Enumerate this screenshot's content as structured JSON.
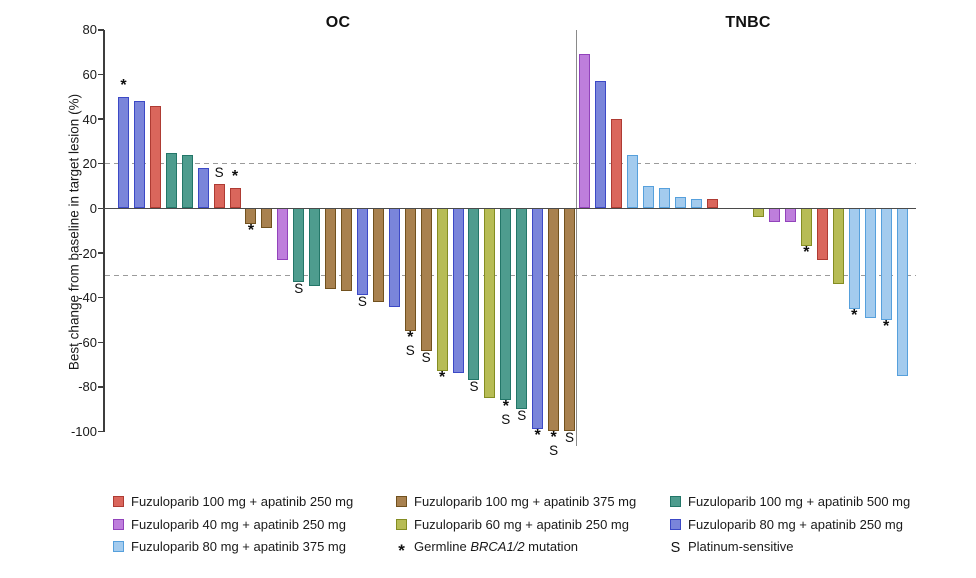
{
  "chart_data": {
    "type": "bar",
    "variant": "waterfall",
    "title": "",
    "ylabel": "Best change from baseline in target lesion (%)",
    "ylim": [
      -100,
      80
    ],
    "yticks": [
      80,
      60,
      40,
      20,
      0,
      -20,
      -40,
      -60,
      -80,
      -100
    ],
    "reference_lines": [
      20,
      -30
    ],
    "grid": "off",
    "marker_meanings": {
      "*": "Germline BRCA1/2 mutation",
      "S": "Platinum-sensitive"
    },
    "groups": {
      "f100a250": {
        "label": "Fuzuloparib 100 mg + apatinib 250 mg",
        "fill": "#DA665C",
        "stroke": "#AE3B33"
      },
      "f100a375": {
        "label": "Fuzuloparib 100 mg + apatinib 375 mg",
        "fill": "#A8814F",
        "stroke": "#71511E"
      },
      "f100a500": {
        "label": "Fuzuloparib 100 mg + apatinib 500 mg",
        "fill": "#4E9C8E",
        "stroke": "#237668"
      },
      "f40a250": {
        "label": "Fuzuloparib 40 mg + apatinib 250 mg",
        "fill": "#BE7EDC",
        "stroke": "#9243BB"
      },
      "f60a250": {
        "label": "Fuzuloparib 60 mg + apatinib 250 mg",
        "fill": "#B7BC55",
        "stroke": "#848D22"
      },
      "f80a250": {
        "label": "Fuzuloparib 80 mg + apatinib 250 mg",
        "fill": "#7A85DA",
        "stroke": "#3C49C6"
      },
      "f80a375": {
        "label": "Fuzuloparib 80 mg + apatinib 375 mg",
        "fill": "#A3CBEE",
        "stroke": "#56A0DC"
      }
    },
    "panels": [
      {
        "label": "OC",
        "bars": [
          {
            "value": 50,
            "group": "f80a250",
            "markers": [
              "*"
            ]
          },
          {
            "value": 48,
            "group": "f80a250",
            "markers": []
          },
          {
            "value": 46,
            "group": "f100a250",
            "markers": []
          },
          {
            "value": 25,
            "group": "f100a500",
            "markers": []
          },
          {
            "value": 24,
            "group": "f100a500",
            "markers": []
          },
          {
            "value": 18,
            "group": "f80a250",
            "markers": []
          },
          {
            "value": 11,
            "group": "f100a250",
            "markers": [
              "S"
            ]
          },
          {
            "value": 9,
            "group": "f100a250",
            "markers": [
              "*"
            ]
          },
          {
            "value": -7,
            "group": "f100a375",
            "markers": [
              "*"
            ]
          },
          {
            "value": -9,
            "group": "f100a375",
            "markers": []
          },
          {
            "value": -23,
            "group": "f40a250",
            "markers": []
          },
          {
            "value": -33,
            "group": "f100a500",
            "markers": [
              "S"
            ]
          },
          {
            "value": -35,
            "group": "f100a500",
            "markers": []
          },
          {
            "value": -36,
            "group": "f100a375",
            "markers": []
          },
          {
            "value": -37,
            "group": "f100a375",
            "markers": []
          },
          {
            "value": -39,
            "group": "f80a250",
            "markers": [
              "S"
            ]
          },
          {
            "value": -42,
            "group": "f100a375",
            "markers": []
          },
          {
            "value": -44,
            "group": "f80a250",
            "markers": []
          },
          {
            "value": -55,
            "group": "f100a375",
            "markers": [
              "*",
              "S"
            ]
          },
          {
            "value": -64,
            "group": "f100a375",
            "markers": [
              "S"
            ]
          },
          {
            "value": -73,
            "group": "f60a250",
            "markers": [
              "*"
            ]
          },
          {
            "value": -74,
            "group": "f80a250",
            "markers": []
          },
          {
            "value": -77,
            "group": "f100a500",
            "markers": [
              "S"
            ]
          },
          {
            "value": -85,
            "group": "f60a250",
            "markers": []
          },
          {
            "value": -86,
            "group": "f100a500",
            "markers": [
              "*",
              "S"
            ]
          },
          {
            "value": -90,
            "group": "f100a500",
            "markers": [
              "S"
            ]
          },
          {
            "value": -99,
            "group": "f80a250",
            "markers": [
              "*"
            ]
          },
          {
            "value": -100,
            "group": "f100a375",
            "markers": [
              "*",
              "S"
            ]
          },
          {
            "value": -100,
            "group": "f100a375",
            "markers": [
              "S"
            ]
          }
        ]
      },
      {
        "label": "TNBC",
        "gap_after_index": 8,
        "bars": [
          {
            "value": 69,
            "group": "f40a250",
            "markers": []
          },
          {
            "value": 57,
            "group": "f80a250",
            "markers": []
          },
          {
            "value": 40,
            "group": "f100a250",
            "markers": []
          },
          {
            "value": 24,
            "group": "f80a375",
            "markers": []
          },
          {
            "value": 10,
            "group": "f80a375",
            "markers": []
          },
          {
            "value": 9,
            "group": "f80a375",
            "markers": []
          },
          {
            "value": 5,
            "group": "f80a375",
            "markers": []
          },
          {
            "value": 4,
            "group": "f80a375",
            "markers": []
          },
          {
            "value": 4,
            "group": "f100a250",
            "markers": []
          },
          {
            "value": -4,
            "group": "f60a250",
            "markers": []
          },
          {
            "value": -6,
            "group": "f40a250",
            "markers": []
          },
          {
            "value": -6,
            "group": "f40a250",
            "markers": []
          },
          {
            "value": -17,
            "group": "f60a250",
            "markers": [
              "*"
            ]
          },
          {
            "value": -23,
            "group": "f100a250",
            "markers": []
          },
          {
            "value": -34,
            "group": "f60a250",
            "markers": []
          },
          {
            "value": -45,
            "group": "f80a375",
            "markers": [
              "*"
            ]
          },
          {
            "value": -49,
            "group": "f80a375",
            "markers": []
          },
          {
            "value": -50,
            "group": "f80a375",
            "markers": [
              "*"
            ]
          },
          {
            "value": -75,
            "group": "f80a375",
            "markers": []
          }
        ]
      }
    ]
  },
  "legend": {
    "columns": [
      {
        "items": [
          {
            "kind": "swatch",
            "group": "f100a250",
            "parts": [
              {
                "t": "Fuzuloparib 100 mg + apatinib 250 mg"
              }
            ]
          },
          {
            "kind": "swatch",
            "group": "f40a250",
            "parts": [
              {
                "t": "Fuzuloparib 40 mg + apatinib 250 mg"
              }
            ]
          },
          {
            "kind": "swatch",
            "group": "f80a375",
            "parts": [
              {
                "t": "Fuzuloparib 80 mg + apatinib 375 mg"
              }
            ]
          }
        ]
      },
      {
        "items": [
          {
            "kind": "swatch",
            "group": "f100a375",
            "parts": [
              {
                "t": "Fuzuloparib 100 mg + apatinib 375 mg"
              }
            ]
          },
          {
            "kind": "swatch",
            "group": "f60a250",
            "parts": [
              {
                "t": "Fuzuloparib 60 mg + apatinib 250 mg"
              }
            ]
          },
          {
            "kind": "symbol",
            "symbol": "*",
            "name": "germline-brca-marker",
            "parts": [
              {
                "t": "Germline "
              },
              {
                "t": "BRCA1/2",
                "italic": true
              },
              {
                "t": " mutation"
              }
            ]
          }
        ]
      },
      {
        "items": [
          {
            "kind": "swatch",
            "group": "f100a500",
            "parts": [
              {
                "t": "Fuzuloparib 100 mg + apatinib 500 mg"
              }
            ]
          },
          {
            "kind": "swatch",
            "group": "f80a250",
            "parts": [
              {
                "t": "Fuzuloparib 80 mg + apatinib 250 mg"
              }
            ]
          },
          {
            "kind": "symbol",
            "symbol": "S",
            "name": "platinum-sensitive-marker",
            "parts": [
              {
                "t": "Platinum-sensitive"
              }
            ]
          }
        ]
      }
    ]
  }
}
